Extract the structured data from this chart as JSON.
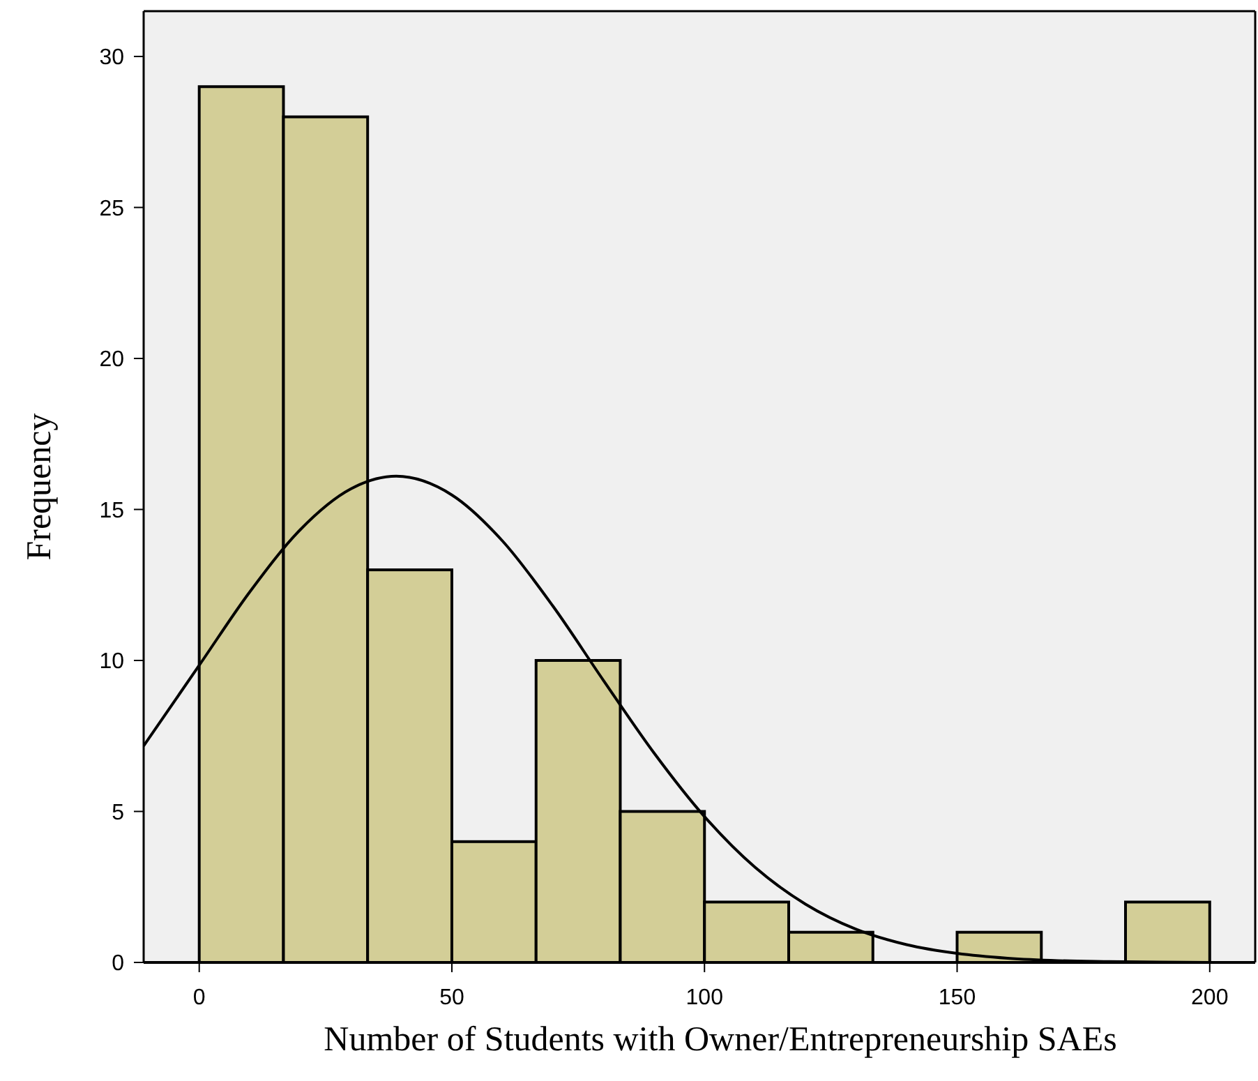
{
  "chart_data": {
    "type": "histogram",
    "xlabel": "Number of Students with Owner/Entrepreneurship SAEs",
    "ylabel": "Frequency",
    "bins": [
      0,
      16.67,
      33.33,
      50,
      66.67,
      83.33,
      100,
      116.67,
      133.33,
      150,
      166.67,
      183.33,
      200
    ],
    "values": [
      29,
      28,
      13,
      4,
      10,
      5,
      2,
      1,
      0,
      1,
      0,
      2
    ],
    "color": "#d3ce97",
    "xlim": [
      -11,
      209
    ],
    "xticks": [
      0,
      50,
      100,
      150,
      200
    ],
    "ylim": [
      0,
      31.5
    ],
    "yticks": [
      0,
      5,
      10,
      15,
      20,
      25,
      30
    ],
    "grid": false,
    "series": [
      {
        "type": "line",
        "color": "#000000",
        "x": [
          -11,
          0,
          10,
          20,
          30,
          39,
          50,
          60,
          70,
          80,
          90,
          100,
          110,
          120,
          130,
          140,
          150,
          160,
          170,
          180,
          190,
          200,
          209
        ],
        "values": [
          7.17,
          9.84,
          12.27,
          14.33,
          15.68,
          16.1,
          15.48,
          13.96,
          11.8,
          9.34,
          6.94,
          4.83,
          3.15,
          1.93,
          1.1,
          0.59,
          0.3,
          0.14,
          0.06,
          0.03,
          0.01,
          0,
          0
        ]
      }
    ]
  }
}
